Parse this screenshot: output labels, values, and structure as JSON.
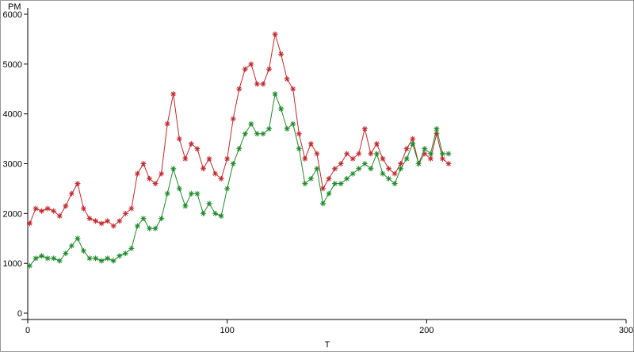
{
  "chart_data": {
    "type": "line",
    "xlabel": "T",
    "ylabel": "PM",
    "x": [
      1,
      4,
      7,
      10,
      13,
      16,
      19,
      22,
      25,
      28,
      31,
      34,
      37,
      40,
      43,
      46,
      49,
      52,
      55,
      58,
      61,
      64,
      67,
      70,
      73,
      76,
      79,
      82,
      85,
      88,
      91,
      94,
      97,
      100,
      103,
      106,
      109,
      112,
      115,
      118,
      121,
      124,
      127,
      130,
      133,
      136,
      139,
      142,
      145,
      148,
      151,
      154,
      157,
      160,
      163,
      166,
      169,
      172,
      175,
      178,
      181,
      184,
      187,
      190,
      193,
      196,
      199,
      202,
      205,
      208,
      211
    ],
    "series": [
      {
        "color": "#c0282d",
        "values": [
          1800,
          2100,
          2050,
          2100,
          2050,
          1950,
          2150,
          2400,
          2600,
          2100,
          1900,
          1850,
          1800,
          1850,
          1750,
          1850,
          2000,
          2100,
          2800,
          3000,
          2700,
          2600,
          2800,
          3800,
          4400,
          3500,
          3100,
          3400,
          3300,
          2900,
          3100,
          2800,
          2700,
          3100,
          3900,
          4500,
          4900,
          5000,
          4600,
          4600,
          4900,
          5600,
          5200,
          4700,
          4500,
          3600,
          3100,
          3400,
          3200,
          2500,
          2700,
          2900,
          3000,
          3200,
          3100,
          3200,
          3700,
          3200,
          3400,
          3100,
          2900,
          2800,
          3000,
          3300,
          3500,
          3000,
          3200,
          3100,
          3600,
          3100,
          3000
        ]
      },
      {
        "color": "#1f8a2a",
        "values": [
          950,
          1100,
          1150,
          1100,
          1100,
          1050,
          1200,
          1350,
          1500,
          1250,
          1100,
          1100,
          1050,
          1100,
          1050,
          1150,
          1200,
          1300,
          1750,
          1900,
          1700,
          1700,
          1900,
          2400,
          2900,
          2500,
          2150,
          2400,
          2400,
          2000,
          2200,
          2000,
          1950,
          2500,
          3000,
          3300,
          3600,
          3800,
          3600,
          3600,
          3700,
          4400,
          4100,
          3700,
          3800,
          3300,
          2600,
          2700,
          2900,
          2200,
          2400,
          2600,
          2600,
          2700,
          2800,
          2900,
          3000,
          2900,
          3200,
          2800,
          2700,
          2600,
          2900,
          3100,
          3400,
          3000,
          3300,
          3200,
          3700,
          3200,
          3200
        ]
      }
    ],
    "xlim": [
      0,
      300
    ],
    "xticks": [
      0,
      100,
      200,
      300
    ],
    "ylim": [
      0,
      6000
    ],
    "yticks": [
      0,
      1000,
      2000,
      3000,
      4000,
      5000,
      6000
    ]
  }
}
